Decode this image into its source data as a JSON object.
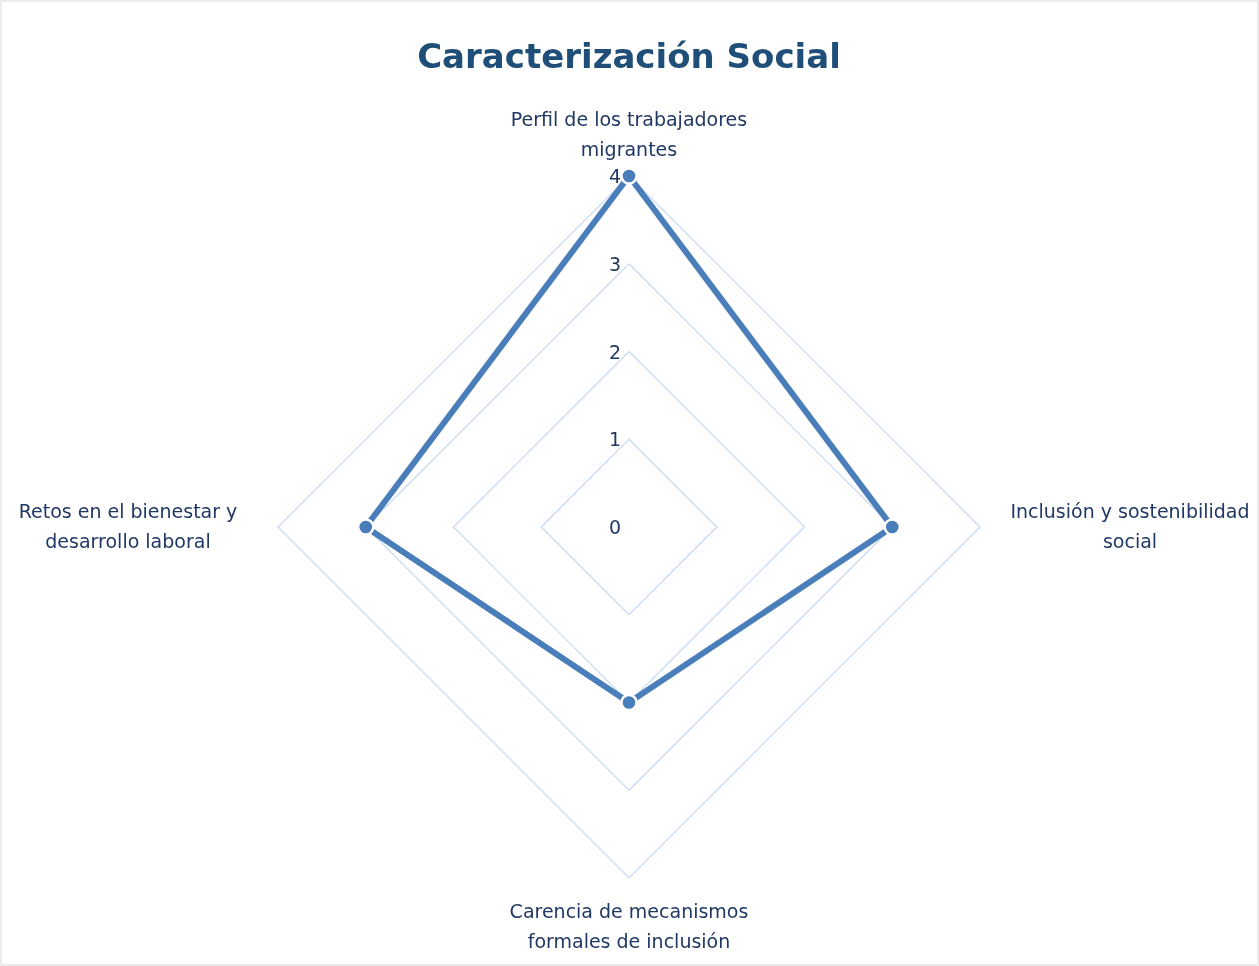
{
  "chart_data": {
    "type": "radar",
    "title": "Caracterización Social",
    "categories": [
      "Perfil de los trabajadores migrantes",
      "Inclusión y sostenibilidad social",
      "Carencia de mecanismos formales de inclusión",
      "Retos en el bienestar y desarrollo laboral"
    ],
    "series": [
      {
        "color": "#4a7ebb",
        "values": [
          4,
          3,
          2,
          3
        ]
      }
    ],
    "ylim": [
      0,
      4
    ],
    "yticks": [
      0,
      1,
      2,
      3,
      4
    ],
    "grid": true,
    "marker": "circle",
    "line_style": "solid"
  }
}
